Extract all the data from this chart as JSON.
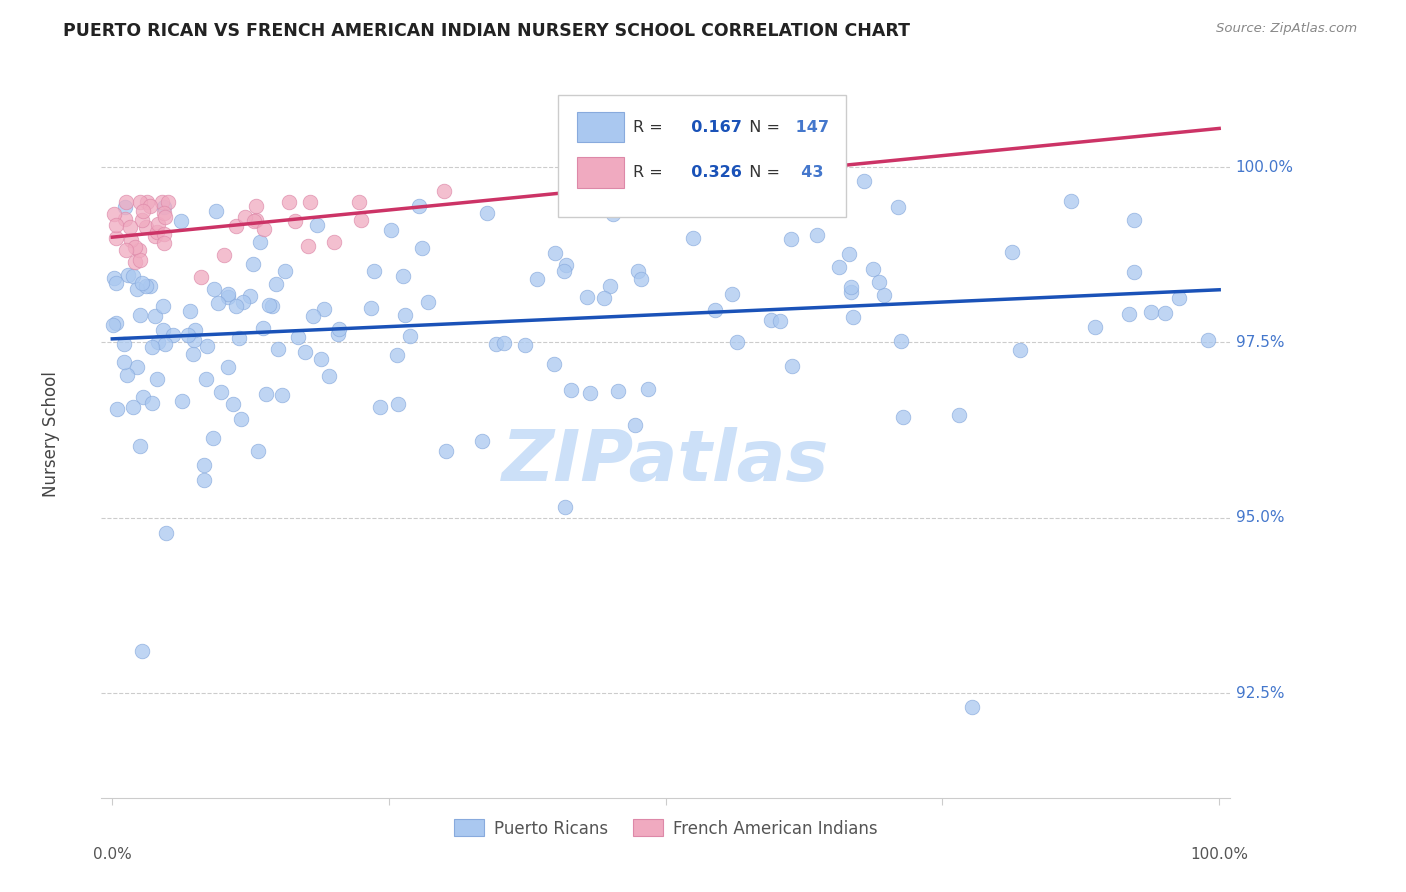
{
  "title": "PUERTO RICAN VS FRENCH AMERICAN INDIAN NURSERY SCHOOL CORRELATION CHART",
  "source": "Source: ZipAtlas.com",
  "ylabel": "Nursery School",
  "watermark": "ZIPatlas",
  "ytick_vals": [
    92.5,
    95.0,
    97.5,
    100.0
  ],
  "ytick_labels": [
    "92.5%",
    "95.0%",
    "97.5%",
    "100.0%"
  ],
  "xlim": [
    -1,
    101
  ],
  "ylim": [
    91.0,
    101.3
  ],
  "blue_R": 0.167,
  "blue_N": 147,
  "pink_R": 0.326,
  "pink_N": 43,
  "blue_color": "#aac8f0",
  "blue_edge_color": "#88aadd",
  "blue_line_color": "#1a52b8",
  "pink_color": "#f0aac0",
  "pink_edge_color": "#dd88a8",
  "pink_line_color": "#cc3366",
  "tick_label_color": "#4477cc",
  "legend_border_color": "#cccccc",
  "grid_color": "#cccccc",
  "axis_color": "#cccccc",
  "title_color": "#222222",
  "source_color": "#888888",
  "ylabel_color": "#444444",
  "bottom_label_color": "#555555",
  "watermark_color": "#cce0f8",
  "blue_trendline_start_y": 97.55,
  "blue_trendline_end_y": 98.25,
  "pink_trendline_start_y": 99.0,
  "pink_trendline_end_y": 100.55
}
